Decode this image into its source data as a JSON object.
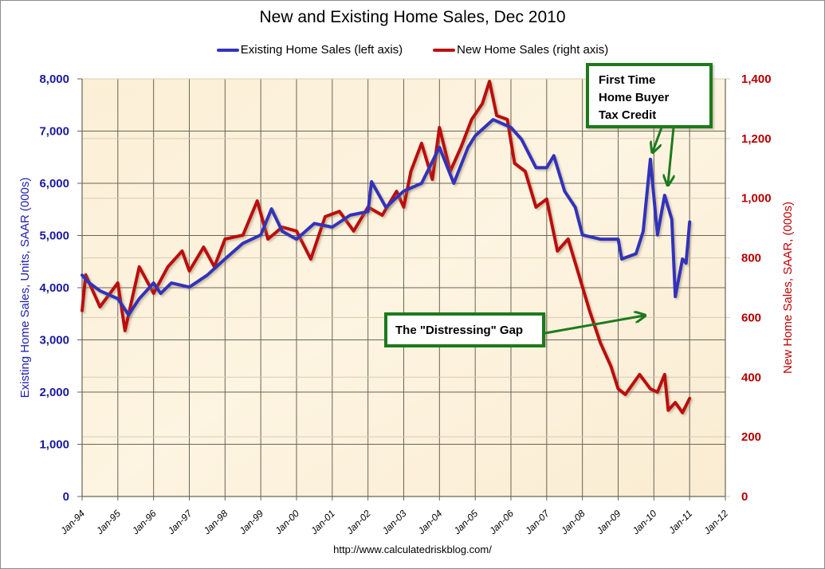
{
  "chart_data": {
    "type": "line",
    "title": "New and Existing Home Sales, Dec 2010",
    "source": "http://www.calculatedriskblog.com/",
    "legend": {
      "placement": "top-center",
      "entries": [
        {
          "name": "Existing Home Sales (left axis)",
          "color": "#3333bb"
        },
        {
          "name": "New Home Sales (right axis)",
          "color": "#bb1111"
        }
      ]
    },
    "xlabel": "",
    "x_ticks": [
      "Jan-94",
      "Jan-95",
      "Jan-96",
      "Jan-97",
      "Jan-98",
      "Jan-99",
      "Jan-00",
      "Jan-01",
      "Jan-02",
      "Jan-03",
      "Jan-04",
      "Jan-05",
      "Jan-06",
      "Jan-07",
      "Jan-08",
      "Jan-09",
      "Jan-10",
      "Jan-11",
      "Jan-12"
    ],
    "xlim": [
      1994,
      2012
    ],
    "y_left": {
      "label": "Existing Home Sales, Units, SAAR (000s)",
      "ylim": [
        0,
        8000
      ],
      "ticks": [
        "0",
        "1,000",
        "2,000",
        "3,000",
        "4,000",
        "5,000",
        "6,000",
        "7,000",
        "8,000"
      ]
    },
    "y_right": {
      "label": "New Home Sales, SAAR, (000s)",
      "ylim": [
        0,
        1400
      ],
      "ticks": [
        "0",
        "200",
        "400",
        "600",
        "800",
        "1,000",
        "1,200",
        "1,400"
      ]
    },
    "grid": true,
    "series": [
      {
        "name": "Existing Home Sales",
        "axis": "left",
        "color": "#3333bb",
        "x": [
          1994.0,
          1994.2,
          1994.5,
          1995.0,
          1995.3,
          1995.6,
          1996.0,
          1996.2,
          1996.5,
          1997.0,
          1997.5,
          1998.0,
          1998.5,
          1999.0,
          1999.3,
          1999.6,
          2000.0,
          2000.5,
          2001.0,
          2001.5,
          2002.0,
          2002.1,
          2002.5,
          2003.0,
          2003.5,
          2004.0,
          2004.4,
          2004.8,
          2005.0,
          2005.5,
          2006.0,
          2006.3,
          2006.7,
          2007.0,
          2007.2,
          2007.5,
          2007.8,
          2008.0,
          2008.5,
          2009.0,
          2009.1,
          2009.5,
          2009.7,
          2009.9,
          2010.1,
          2010.3,
          2010.5,
          2010.6,
          2010.8,
          2010.9,
          2011.0
        ],
        "y": [
          4240,
          4090,
          3940,
          3790,
          3480,
          3790,
          4090,
          3890,
          4090,
          4010,
          4240,
          4550,
          4850,
          5010,
          5510,
          5080,
          4930,
          5230,
          5160,
          5390,
          5460,
          6030,
          5540,
          5850,
          6000,
          6690,
          6000,
          6690,
          6910,
          7220,
          7070,
          6840,
          6300,
          6300,
          6530,
          5850,
          5540,
          5010,
          4930,
          4930,
          4550,
          4650,
          5080,
          6460,
          5010,
          5770,
          5310,
          3830,
          4550,
          4470,
          5260
        ]
      },
      {
        "name": "New Home Sales",
        "axis": "right",
        "color": "#bb1111",
        "x": [
          1994.0,
          1994.1,
          1994.5,
          1995.0,
          1995.2,
          1995.6,
          1996.0,
          1996.4,
          1996.8,
          1997.0,
          1997.4,
          1997.7,
          1998.0,
          1998.5,
          1998.9,
          1999.2,
          1999.6,
          2000.0,
          2000.4,
          2000.8,
          2001.2,
          2001.6,
          2002.0,
          2002.4,
          2002.8,
          2003.0,
          2003.2,
          2003.5,
          2003.8,
          2004.0,
          2004.3,
          2004.6,
          2004.9,
          2005.2,
          2005.4,
          2005.6,
          2005.9,
          2006.1,
          2006.4,
          2006.7,
          2007.0,
          2007.3,
          2007.6,
          2007.9,
          2008.2,
          2008.5,
          2008.8,
          2009.0,
          2009.2,
          2009.6,
          2009.9,
          2010.1,
          2010.3,
          2010.4,
          2010.6,
          2010.8,
          2011.0
        ],
        "y": [
          623,
          743,
          636,
          716,
          556,
          770,
          681,
          770,
          823,
          756,
          836,
          770,
          863,
          876,
          991,
          863,
          903,
          890,
          796,
          938,
          956,
          890,
          970,
          943,
          1023,
          970,
          1090,
          1184,
          1063,
          1237,
          1090,
          1170,
          1264,
          1317,
          1392,
          1277,
          1264,
          1117,
          1090,
          970,
          997,
          823,
          863,
          743,
          623,
          516,
          436,
          361,
          342,
          409,
          361,
          350,
          409,
          289,
          315,
          281,
          329
        ]
      }
    ],
    "annotations": [
      {
        "text_lines": [
          "First Time",
          "Home Buyer",
          "Tax Credit"
        ],
        "points_to": [
          2009.9,
          2010.3
        ],
        "color": "#1e7a1e"
      },
      {
        "text_lines": [
          "The \"Distressing\" Gap"
        ],
        "points_to": [
          2009.5
        ],
        "color": "#1e7a1e"
      }
    ]
  }
}
